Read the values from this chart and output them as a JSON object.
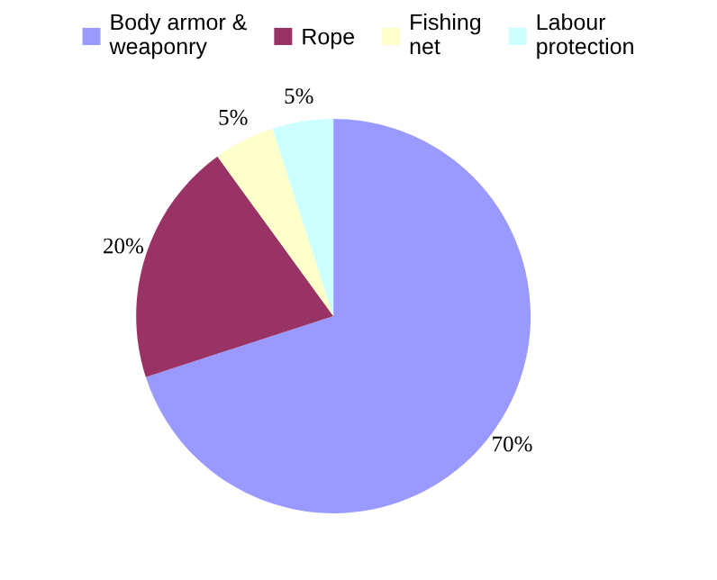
{
  "chart_data": {
    "type": "pie",
    "categories": [
      "Body armor & weaponry",
      "Rope",
      "Fishing net",
      "Labour protection"
    ],
    "values": [
      70,
      20,
      5,
      5
    ],
    "value_labels": [
      "70%",
      "20%",
      "5%",
      "5%"
    ],
    "colors": [
      "#9999ff",
      "#993366",
      "#ffffcc",
      "#ccffff"
    ],
    "legend": "top"
  }
}
